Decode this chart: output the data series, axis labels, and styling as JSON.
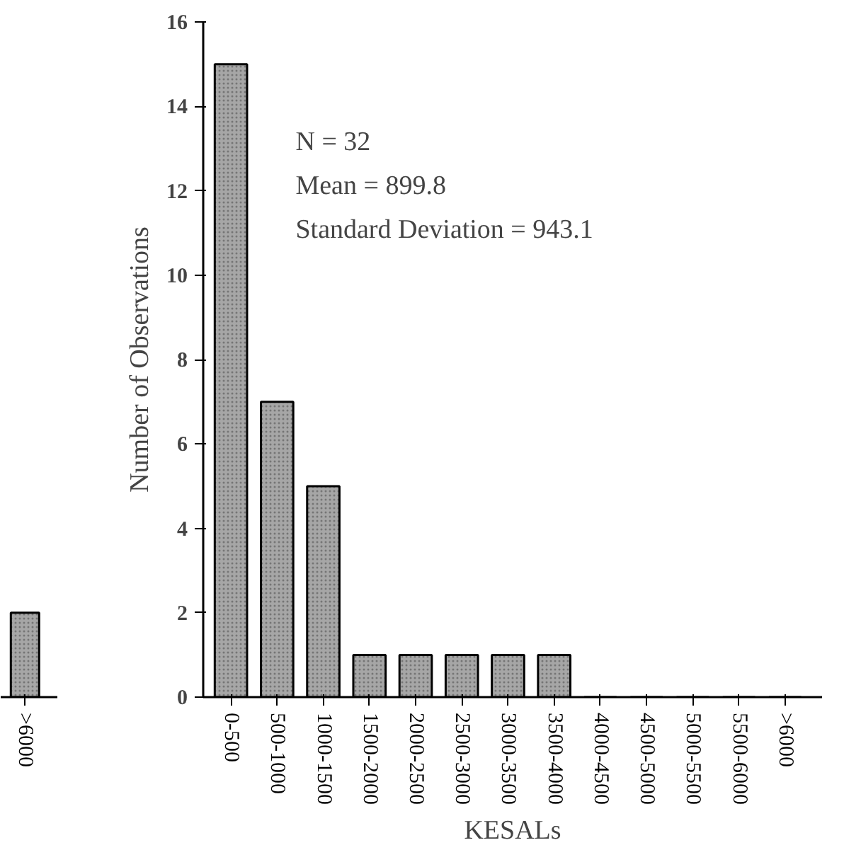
{
  "chart_data": [
    {
      "type": "bar",
      "categories": [
        ">6000"
      ],
      "values": [
        2
      ],
      "color": "#a6a6a6",
      "ylim": [
        0,
        16
      ],
      "tick_labels": "x",
      "grid": false
    },
    {
      "type": "bar",
      "categories": [
        "0-500",
        "500-1000",
        "1000-1500",
        "1500-2000",
        "2000-2500",
        "2500-3000",
        "3000-3500",
        "3500-4000",
        "4000-4500",
        "4500-5000",
        "5000-5500",
        "5500-6000",
        ">6000"
      ],
      "values": [
        15,
        7,
        5,
        1,
        1,
        1,
        1,
        1,
        0,
        0,
        0,
        0,
        0
      ],
      "color": "#a6a6a6",
      "xlabel": "KESALs",
      "ylabel": "Number of Observations",
      "ylim": [
        0,
        16
      ],
      "yticks": [
        0,
        2,
        4,
        6,
        8,
        10,
        12,
        14,
        16
      ],
      "grid": false,
      "annotations": [
        "N = 32",
        "Mean = 899.8",
        "Standard Deviation = 943.1"
      ]
    }
  ]
}
